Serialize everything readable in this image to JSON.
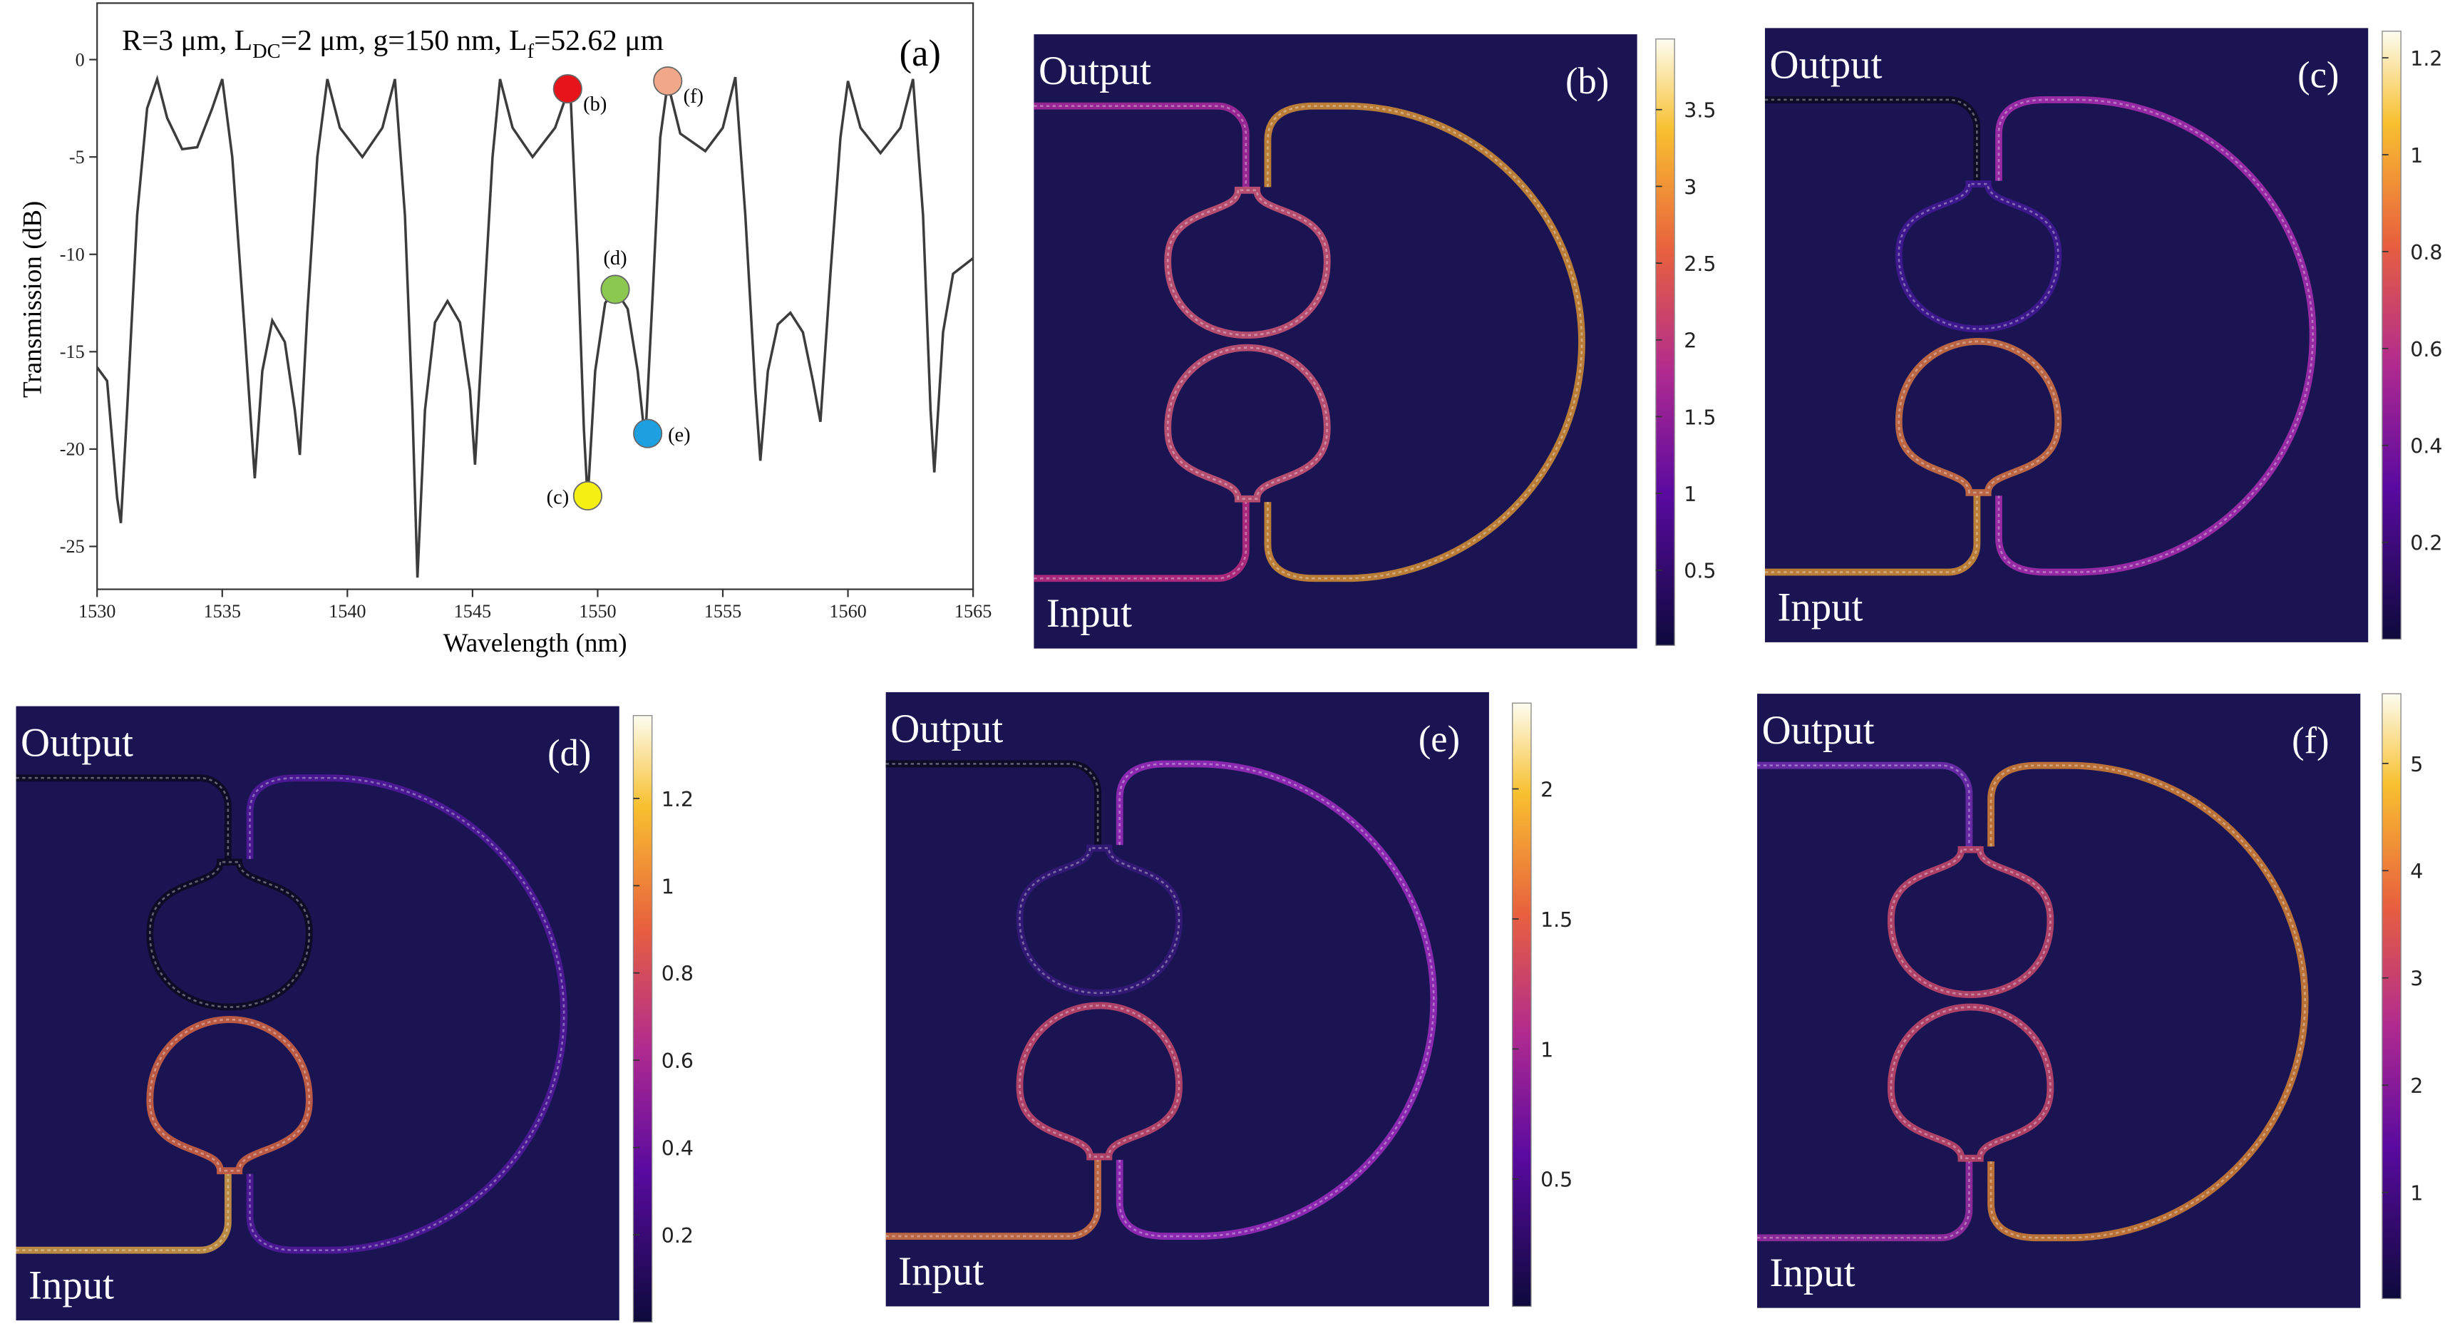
{
  "chart_data": [
    {
      "type": "line",
      "panel_label": "(a)",
      "title_parts": [
        "R=3 μm, L",
        "DC",
        "=2 μm, g=150 nm, L",
        "f",
        "=52.62 μm"
      ],
      "x_label": "Wavelength (nm)",
      "y_label": "Transmission (dB)",
      "xlim": [
        1530,
        1565
      ],
      "xticks": [
        1530,
        1535,
        1540,
        1545,
        1550,
        1555,
        1560,
        1565
      ],
      "ylim": [
        -27.2,
        2.9
      ],
      "yticks": [
        0,
        -5,
        -10,
        -15,
        -20,
        -25
      ],
      "x": [
        1530,
        1530.4,
        1530.8,
        1530.95,
        1531.2,
        1531.6,
        1532,
        1532.4,
        1532.8,
        1533.4,
        1534,
        1534.6,
        1535,
        1535.4,
        1535.9,
        1536.3,
        1536.6,
        1537,
        1537.5,
        1537.9,
        1538.1,
        1538.4,
        1538.8,
        1539.2,
        1539.7,
        1540.6,
        1541.4,
        1541.9,
        1542.3,
        1542.6,
        1542.8,
        1543.1,
        1543.5,
        1544,
        1544.5,
        1544.9,
        1545.1,
        1545.4,
        1545.8,
        1546.1,
        1546.6,
        1547.4,
        1548.3,
        1548.9,
        1549.2,
        1549.45,
        1549.6,
        1549.9,
        1550.3,
        1550.7,
        1551.2,
        1551.6,
        1551.9,
        1552.2,
        1552.5,
        1552.8,
        1553.3,
        1554.3,
        1555,
        1555.5,
        1555.9,
        1556.3,
        1556.5,
        1556.8,
        1557.2,
        1557.7,
        1558.2,
        1558.6,
        1558.9,
        1559.3,
        1559.7,
        1560,
        1560.5,
        1561.3,
        1562.1,
        1562.6,
        1563,
        1563.3,
        1563.45,
        1563.8,
        1564.2,
        1565
      ],
      "series": [
        {
          "color": "#3c3c3c",
          "values": [
            -15.8,
            -16.5,
            -22.5,
            -23.8,
            -18,
            -8,
            -2.5,
            -1,
            -3,
            -4.6,
            -4.5,
            -2.5,
            -1,
            -5,
            -14,
            -21.5,
            -16,
            -13.4,
            -14.5,
            -18,
            -20.3,
            -13,
            -5,
            -1,
            -3.5,
            -5,
            -3.5,
            -1,
            -8,
            -18,
            -26.6,
            -18,
            -13.5,
            -12.4,
            -13.5,
            -17,
            -20.8,
            -14,
            -5,
            -1,
            -3.5,
            -5,
            -3.5,
            -1.3,
            -10,
            -19,
            -22.6,
            -16,
            -12.5,
            -11.8,
            -12.8,
            -16,
            -19.6,
            -12,
            -4,
            -1.2,
            -3.8,
            -4.7,
            -3.5,
            -0.9,
            -8,
            -17,
            -20.6,
            -16,
            -13.6,
            -13,
            -14,
            -16.5,
            -18.6,
            -11,
            -4,
            -1.1,
            -3.5,
            -4.8,
            -3.5,
            -1,
            -8,
            -18,
            -21.2,
            -14,
            -11,
            -10.2
          ]
        }
      ],
      "points": [
        {
          "label": "(b)",
          "x": 1548.8,
          "y": -1.5,
          "color": "#e8141c",
          "label_side": "lower-right"
        },
        {
          "label": "(c)",
          "x": 1549.6,
          "y": -22.4,
          "color": "#f5f014",
          "label_side": "left"
        },
        {
          "label": "(d)",
          "x": 1550.7,
          "y": -11.8,
          "color": "#8cc850",
          "label_side": "above"
        },
        {
          "label": "(e)",
          "x": 1552.0,
          "y": -19.2,
          "color": "#1ea0e0",
          "label_side": "right"
        },
        {
          "label": "(f)",
          "x": 1552.8,
          "y": -1.1,
          "color": "#f0a888",
          "label_side": "lower-right"
        }
      ]
    },
    {
      "type": "field",
      "panel_label": "(b)",
      "output_label": "Output",
      "input_label": "Input",
      "clim": [
        0.01,
        3.96
      ],
      "cticks": [
        0.5,
        1,
        1.5,
        2,
        2.5,
        3,
        3.5
      ],
      "colors": {
        "output": "#c02ca8",
        "input": "#d8308a",
        "upper_ring": "#e8607a",
        "lower_ring": "#e8607a",
        "arc": "#f0a030"
      }
    },
    {
      "type": "field",
      "panel_label": "(c)",
      "output_label": "Output",
      "input_label": "Input",
      "clim": [
        0.0,
        1.255
      ],
      "cticks": [
        0.2,
        0.4,
        0.6,
        0.8,
        1,
        1.2
      ],
      "colors": {
        "output": "#0a0a18",
        "input": "#f0a030",
        "upper_ring": "#4a18a0",
        "lower_ring": "#f08040",
        "arc": "#c030c0"
      }
    },
    {
      "type": "field",
      "panel_label": "(d)",
      "output_label": "Output",
      "input_label": "Input",
      "clim": [
        0.0,
        1.39
      ],
      "cticks": [
        0.2,
        0.4,
        0.6,
        0.8,
        1,
        1.2
      ],
      "colors": {
        "output": "#0a0a18",
        "input": "#f0b040",
        "upper_ring": "#0a0a18",
        "lower_ring": "#f07040",
        "arc": "#5a1aa8"
      }
    },
    {
      "type": "field",
      "panel_label": "(e)",
      "output_label": "Output",
      "input_label": "Input",
      "clim": [
        0.01,
        2.33
      ],
      "cticks": [
        0.5,
        1,
        1.5,
        2
      ],
      "colors": {
        "output": "#0a0a18",
        "input": "#f08040",
        "upper_ring": "#3a1a80",
        "lower_ring": "#e05070",
        "arc": "#b030d0"
      }
    },
    {
      "type": "field",
      "panel_label": "(f)",
      "output_label": "Output",
      "input_label": "Input",
      "clim": [
        0.01,
        5.65
      ],
      "cticks": [
        1,
        2,
        3,
        4,
        5
      ],
      "colors": {
        "output": "#8030c0",
        "input": "#b030b0",
        "upper_ring": "#e05070",
        "lower_ring": "#e05070",
        "arc": "#f09030"
      }
    }
  ]
}
